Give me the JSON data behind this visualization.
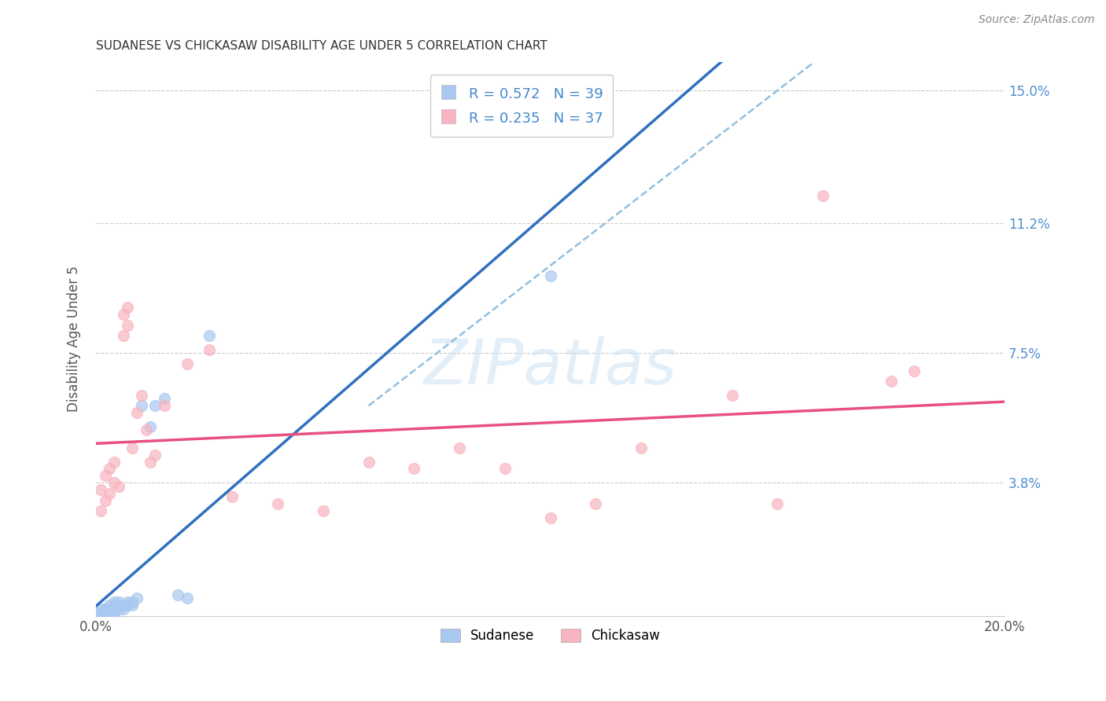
{
  "title": "SUDANESE VS CHICKASAW DISABILITY AGE UNDER 5 CORRELATION CHART",
  "source": "Source: ZipAtlas.com",
  "ylabel": "Disability Age Under 5",
  "x_min": 0.0,
  "x_max": 0.2,
  "y_min": 0.0,
  "y_max": 0.158,
  "x_ticks": [
    0.0,
    0.04,
    0.08,
    0.12,
    0.16,
    0.2
  ],
  "x_tick_labels": [
    "0.0%",
    "",
    "",
    "",
    "",
    "20.0%"
  ],
  "y_ticks": [
    0.038,
    0.075,
    0.112,
    0.15
  ],
  "y_tick_labels": [
    "3.8%",
    "7.5%",
    "11.2%",
    "15.0%"
  ],
  "sudanese_R": 0.572,
  "sudanese_N": 39,
  "chickasaw_R": 0.235,
  "chickasaw_N": 37,
  "sudanese_color": "#A8C8F0",
  "chickasaw_color": "#F8B4C0",
  "sudanese_line_color": "#3070C0",
  "chickasaw_line_color": "#E85080",
  "dashed_line_color": "#90C0E0",
  "background_color": "#FFFFFF",
  "grid_color": "#CCCCCC",
  "watermark_color": "#D0E4F4",
  "sudanese_x": [
    0.001,
    0.001,
    0.001,
    0.001,
    0.002,
    0.002,
    0.002,
    0.002,
    0.002,
    0.003,
    0.003,
    0.003,
    0.003,
    0.003,
    0.004,
    0.004,
    0.004,
    0.004,
    0.004,
    0.004,
    0.004,
    0.005,
    0.005,
    0.005,
    0.006,
    0.006,
    0.007,
    0.007,
    0.008,
    0.008,
    0.009,
    0.01,
    0.012,
    0.013,
    0.015,
    0.018,
    0.02,
    0.025,
    0.1
  ],
  "sudanese_y": [
    0.0,
    0.0,
    0.001,
    0.002,
    0.0,
    0.001,
    0.001,
    0.002,
    0.002,
    0.0,
    0.001,
    0.001,
    0.002,
    0.003,
    0.001,
    0.001,
    0.002,
    0.002,
    0.003,
    0.003,
    0.004,
    0.002,
    0.003,
    0.004,
    0.002,
    0.003,
    0.003,
    0.004,
    0.003,
    0.004,
    0.005,
    0.06,
    0.054,
    0.06,
    0.062,
    0.006,
    0.005,
    0.08,
    0.097
  ],
  "chickasaw_x": [
    0.001,
    0.001,
    0.002,
    0.002,
    0.003,
    0.003,
    0.004,
    0.004,
    0.005,
    0.006,
    0.006,
    0.007,
    0.007,
    0.008,
    0.009,
    0.01,
    0.011,
    0.012,
    0.013,
    0.015,
    0.02,
    0.025,
    0.03,
    0.04,
    0.05,
    0.06,
    0.07,
    0.08,
    0.09,
    0.1,
    0.11,
    0.12,
    0.14,
    0.15,
    0.16,
    0.175,
    0.18
  ],
  "chickasaw_y": [
    0.03,
    0.036,
    0.033,
    0.04,
    0.035,
    0.042,
    0.038,
    0.044,
    0.037,
    0.08,
    0.086,
    0.083,
    0.088,
    0.048,
    0.058,
    0.063,
    0.053,
    0.044,
    0.046,
    0.06,
    0.072,
    0.076,
    0.034,
    0.032,
    0.03,
    0.044,
    0.042,
    0.048,
    0.042,
    0.028,
    0.032,
    0.048,
    0.063,
    0.032,
    0.12,
    0.067,
    0.07
  ]
}
